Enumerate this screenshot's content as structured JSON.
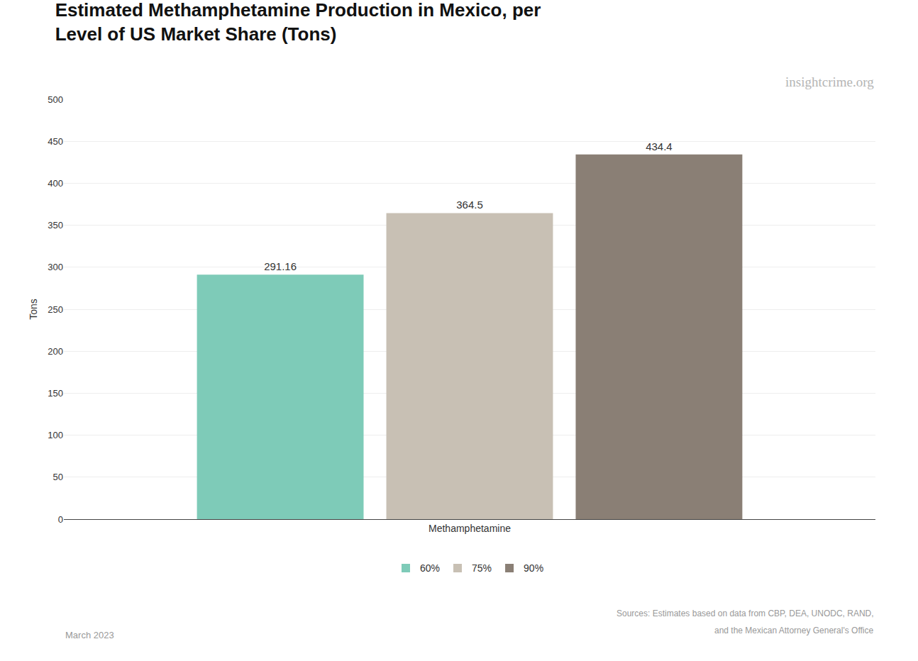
{
  "chart_data": {
    "type": "bar",
    "title": "Estimated Methamphetamine Production in Mexico, per\nLevel of US Market Share (Tons)",
    "categories": [
      "Methamphetamine"
    ],
    "series": [
      {
        "name": "60%",
        "color": "#7ecbb8",
        "values": [
          291.16
        ]
      },
      {
        "name": "75%",
        "color": "#c8c0b4",
        "values": [
          364.5
        ]
      },
      {
        "name": "90%",
        "color": "#8a7f75",
        "values": [
          434.4
        ]
      }
    ],
    "ylabel": "Tons",
    "ylim": [
      0,
      500
    ],
    "yticks": [
      0,
      50,
      100,
      150,
      200,
      250,
      300,
      350,
      400,
      450,
      500
    ],
    "grid": true,
    "data_labels": true,
    "legend": "bottom",
    "annotations": [
      "insightcrime.org",
      "March 2023",
      "Sources: Estimates based on data from CBP, DEA, UNODC, RAND,",
      "and the Mexican Attorney General's Office"
    ]
  }
}
